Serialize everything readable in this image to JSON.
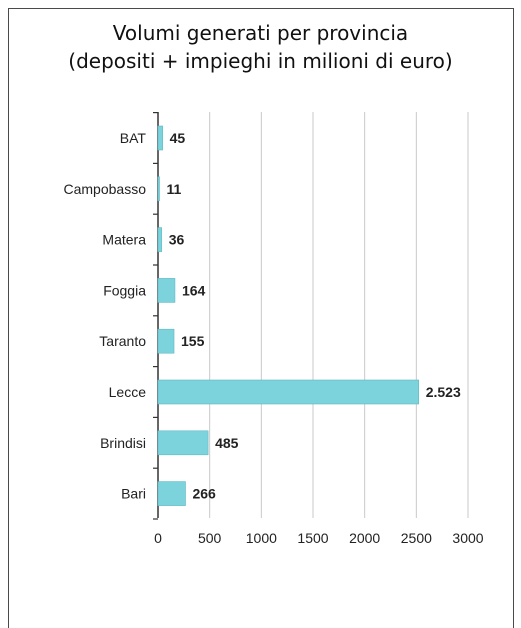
{
  "title_line1": "Volumi generati per provincia",
  "title_line2": "(depositi + impieghi in milioni di euro)",
  "chart_data": {
    "type": "bar",
    "orientation": "horizontal",
    "title": "Volumi generati per provincia (depositi + impieghi in milioni di euro)",
    "categories": [
      "BAT",
      "Campobasso",
      "Matera",
      "Foggia",
      "Taranto",
      "Lecce",
      "Brindisi",
      "Bari"
    ],
    "values": [
      45,
      11,
      36,
      164,
      155,
      2523,
      485,
      266
    ],
    "value_labels": [
      "45",
      "11",
      "36",
      "164",
      "155",
      "2.523",
      "485",
      "266"
    ],
    "xlim": [
      0,
      3000
    ],
    "x_ticks": [
      0,
      500,
      1000,
      1500,
      2000,
      2500,
      3000
    ],
    "grid": true,
    "bar_color": "#7dd3dc",
    "bar_edge_color": "#5fb8c2"
  }
}
